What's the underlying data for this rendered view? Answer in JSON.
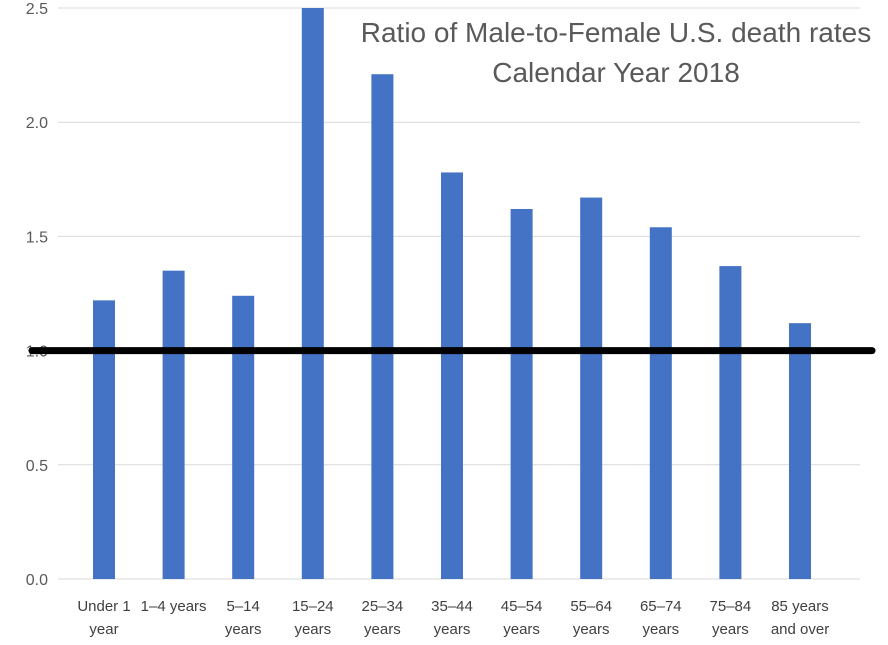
{
  "chart_data": {
    "type": "bar",
    "title": "Ratio of Male-to-Female U.S. death rates",
    "subtitle": "Calendar Year 2018",
    "xlabel": "",
    "ylabel": "",
    "ylim": [
      0,
      2.5
    ],
    "y_ticks": [
      "0.0",
      "0.5",
      "1.0",
      "1.5",
      "2.0",
      "2.5"
    ],
    "y_tick_values": [
      0,
      0.5,
      1.0,
      1.5,
      2.0,
      2.5
    ],
    "categories": [
      [
        "Under 1",
        "year"
      ],
      [
        "1–4 years"
      ],
      [
        "5–14",
        "years"
      ],
      [
        "15–24",
        "years"
      ],
      [
        "25–34",
        "years"
      ],
      [
        "35–44",
        "years"
      ],
      [
        "45–54",
        "years"
      ],
      [
        "55–64",
        "years"
      ],
      [
        "65–74",
        "years"
      ],
      [
        "75–84",
        "years"
      ],
      [
        "85 years",
        "and over"
      ]
    ],
    "values": [
      1.22,
      1.35,
      1.24,
      2.5,
      2.21,
      1.78,
      1.62,
      1.67,
      1.54,
      1.37,
      1.12
    ],
    "reference_line": 1.0,
    "grid": true,
    "bar_color": "#4472c4",
    "reference_line_color": "#000000"
  }
}
